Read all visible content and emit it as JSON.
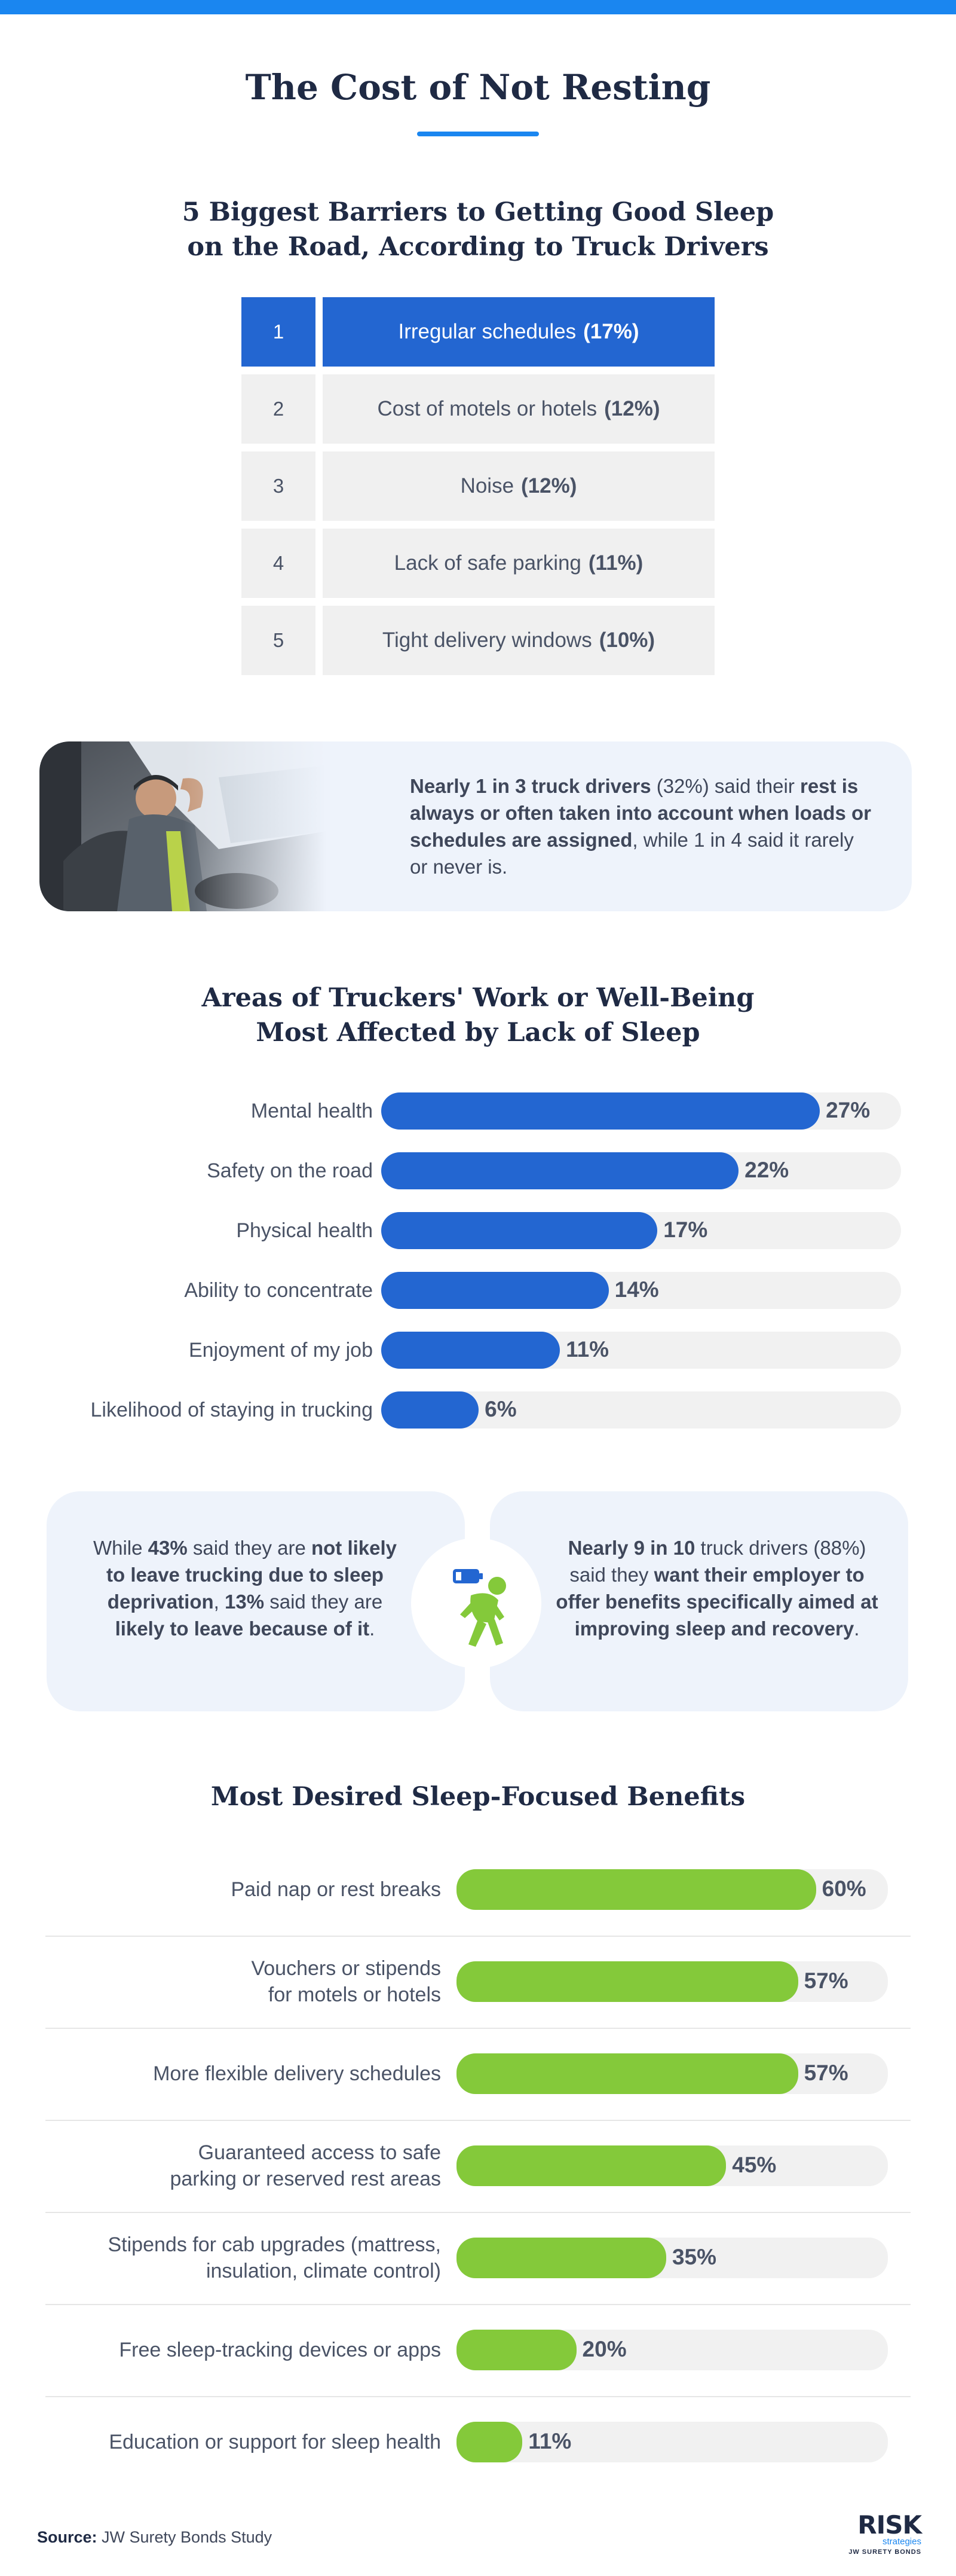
{
  "title": "The Cost of Not Resting",
  "barriers": {
    "title_line1": "5 Biggest Barriers to Getting Good Sleep",
    "title_line2": "on the Road, According to Truck Drivers",
    "rows": [
      {
        "rank": "1",
        "label": "Irregular schedules",
        "value": "(17%)"
      },
      {
        "rank": "2",
        "label": "Cost of motels or hotels",
        "value": "(12%)"
      },
      {
        "rank": "3",
        "label": "Noise",
        "value": "(12%)"
      },
      {
        "rank": "4",
        "label": "Lack of safe parking",
        "value": "(11%)"
      },
      {
        "rank": "5",
        "label": "Tight delivery windows",
        "value": "(10%)"
      }
    ]
  },
  "callout_rest": {
    "bold1": "Nearly 1 in 3 truck drivers",
    "plain1": " (32%) said their ",
    "bold2": "rest is always or often taken into account when loads or schedules are assigned",
    "plain2": ", while 1 in 4 said it rarely or never is."
  },
  "areas": {
    "title_line1": "Areas of Truckers' Work or Well-Being",
    "title_line2": "Most Affected by Lack of Sleep"
  },
  "callout_leave": {
    "t1": "While ",
    "b1": "43%",
    "t2": " said they are ",
    "b2": "not likely to leave trucking due to sleep deprivation",
    "t3": ", ",
    "b3": "13%",
    "t4": " said they are ",
    "b4": "likely to leave because of it",
    "t5": "."
  },
  "callout_benefits": {
    "b1": "Nearly 9 in 10",
    "t1": " truck drivers (88%) said they ",
    "b2": "want their employer to offer benefits specifically aimed at improving sleep and recovery",
    "t2": "."
  },
  "benefits": {
    "title": "Most Desired Sleep-Focused Benefits"
  },
  "source": {
    "label": "Source:",
    "text": " JW Surety Bonds Study"
  },
  "logo": {
    "main": "RISK",
    "sub": "strategies",
    "tag": "JW SURETY BONDS"
  },
  "colors": {
    "accent": "#1a86f0",
    "blue_bar": "#2366d1",
    "green_bar": "#84c93a",
    "track": "#f1f1f1",
    "card_bg": "#eef3fb",
    "navy": "#1f2a44"
  },
  "chart_data": [
    {
      "type": "bar",
      "orientation": "horizontal",
      "title": "Areas of Truckers' Work or Well-Being Most Affected by Lack of Sleep",
      "categories": [
        "Mental health",
        "Safety on the road",
        "Physical health",
        "Ability to concentrate",
        "Enjoyment of my job",
        "Likelihood of staying in trucking"
      ],
      "values": [
        27,
        22,
        17,
        14,
        11,
        6
      ],
      "value_labels": [
        "27%",
        "22%",
        "17%",
        "14%",
        "11%",
        "6%"
      ],
      "xlim": [
        0,
        32
      ],
      "color": "#2366d1"
    },
    {
      "type": "bar",
      "orientation": "horizontal",
      "title": "Most Desired Sleep-Focused Benefits",
      "categories": [
        [
          "Paid nap or rest breaks"
        ],
        [
          "Vouchers or stipends",
          "for motels or hotels"
        ],
        [
          "More flexible delivery schedules"
        ],
        [
          "Guaranteed access to safe",
          "parking or reserved rest areas"
        ],
        [
          "Stipends for cab upgrades (mattress,",
          "insulation, climate control)"
        ],
        [
          "Free sleep-tracking devices or apps"
        ],
        [
          "Education or support for sleep health"
        ]
      ],
      "values": [
        60,
        57,
        57,
        45,
        35,
        20,
        11
      ],
      "value_labels": [
        "60%",
        "57%",
        "57%",
        "45%",
        "35%",
        "20%",
        "11%"
      ],
      "xlim": [
        0,
        72
      ],
      "color": "#84c93a"
    }
  ]
}
